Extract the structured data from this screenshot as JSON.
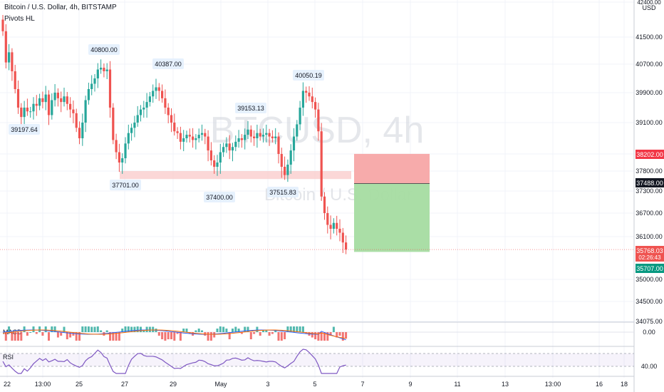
{
  "header": {
    "title": "Bitcoin / U.S. Dollar, 4h, BITSTAMP",
    "indicator": "Pivots HL"
  },
  "currency": "USD",
  "watermark": {
    "symbol": "BTCUSD, 4h",
    "name": "Bitcoin / U.S. Dollar"
  },
  "colors": {
    "up": "#26a69a",
    "down": "#ef5350",
    "macd_line": "#2962ff",
    "signal_line": "#ff6d00",
    "rsi_line": "#7e57c2",
    "stop_zone": "#f7a6a6",
    "target_zone": "#a5dca1",
    "support_zone": "#f9c9c9"
  },
  "chart_data": [
    {
      "type": "candlestick",
      "price_axis": {
        "ticks": [
          "42400.00",
          "41500.00",
          "40700.00",
          "39900.00",
          "39100.00",
          "38200.00",
          "37800.00",
          "37300.00",
          "36700.00",
          "36100.00",
          "35000.00",
          "34500.00",
          "34075.00"
        ],
        "ylim": [
          34000,
          42400
        ]
      },
      "time_axis": {
        "ticks": [
          "22",
          "13:00",
          "25",
          "27",
          "29",
          "May",
          "3",
          "5",
          "7",
          "9",
          "11",
          "13",
          "13:00",
          "16",
          "18"
        ]
      },
      "price_labels": [
        {
          "value": "38202.00",
          "color": "#f23645"
        },
        {
          "value": "37488.00",
          "color": "#131722"
        },
        {
          "value": "35768.03",
          "sub": "02:26:43",
          "color": "#ef5350"
        },
        {
          "value": "35707.00",
          "color": "#089981"
        }
      ],
      "pivot_labels": [
        {
          "text": "40800.00",
          "kind": "high"
        },
        {
          "text": "40387.00",
          "kind": "high"
        },
        {
          "text": "40050.19",
          "kind": "high"
        },
        {
          "text": "39153.13",
          "kind": "high"
        },
        {
          "text": "39197.64",
          "kind": "low"
        },
        {
          "text": "37701.00",
          "kind": "low"
        },
        {
          "text": "37400.00",
          "kind": "low"
        },
        {
          "text": "37515.83",
          "kind": "low"
        }
      ],
      "support_zone": [
        37600,
        37800
      ],
      "position_tool": {
        "stop": 38202,
        "entry": 37488,
        "target": 35707
      },
      "closes": [
        41650,
        40750,
        41050,
        40500,
        40000,
        39500,
        39250,
        39500,
        39400,
        39400,
        39600,
        39550,
        39750,
        39650,
        39850,
        39300,
        39700,
        39900,
        39750,
        39650,
        39800,
        39600,
        39450,
        39350,
        38950,
        38650,
        39100,
        39700,
        40000,
        40150,
        40300,
        40550,
        40600,
        40500,
        40550,
        39500,
        38600,
        38250,
        38000,
        38100,
        38500,
        38800,
        38950,
        39100,
        39300,
        39450,
        39500,
        39650,
        39800,
        39950,
        40050,
        39950,
        39750,
        39500,
        39300,
        39100,
        38850,
        38800,
        38550,
        38650,
        38750,
        38700,
        38600,
        38650,
        38750,
        38800,
        38700,
        38300,
        38050,
        37900,
        38000,
        38250,
        38400,
        38500,
        38300,
        38400,
        38550,
        38650,
        38600,
        38750,
        38900,
        38700,
        38650,
        38800,
        38700,
        38750,
        38800,
        38700,
        38650,
        38700,
        38200,
        37900,
        37700,
        37950,
        38300,
        38700,
        39050,
        39500,
        39950,
        39900,
        39800,
        39650,
        39450,
        38850,
        37150,
        36700,
        36400,
        36300,
        36450,
        36300,
        36200,
        35950,
        35768
      ],
      "macd": {
        "ticks": [
          "0.00"
        ]
      },
      "rsi": {
        "ticks": [
          "40.00"
        ]
      }
    }
  ],
  "labels": {
    "macd": "MACD",
    "rsi": "RSI"
  }
}
